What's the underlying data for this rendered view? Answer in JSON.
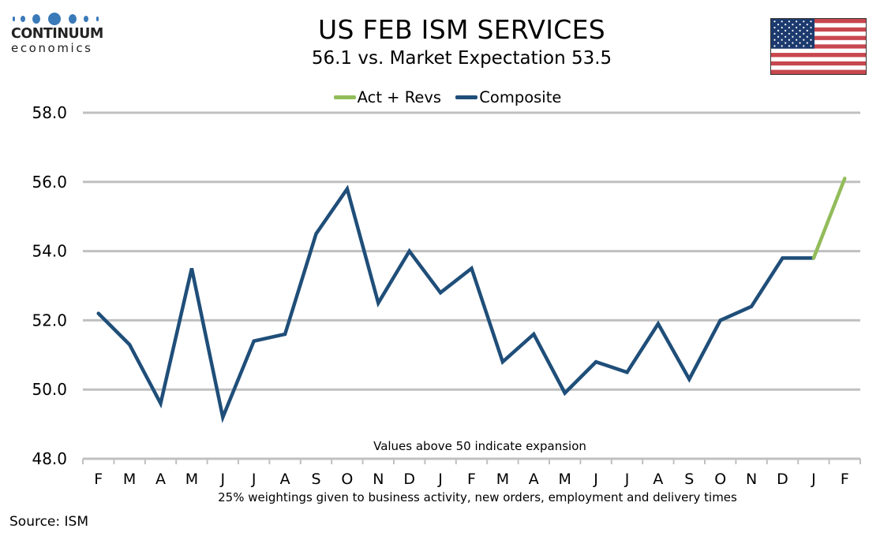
{
  "logo": {
    "name": "CONTINUUM",
    "sub": "economics"
  },
  "flag": {
    "name": "us-flag"
  },
  "colors": {
    "composite": "#1f4e79",
    "act_revs": "#92bc5a",
    "grid": "#c0c0c0",
    "logo_dots": "#3a7ab8"
  },
  "source": "Source: ISM",
  "chart_data": {
    "type": "line",
    "title": "US FEB ISM SERVICES",
    "subtitle": "56.1 vs. Market Expectation 53.5",
    "xlabel": "25% weightings given to business activity, new orders, employment and delivery times",
    "ylabel": "",
    "annotation": "Values above 50 indicate expansion",
    "legend_position": "top-center",
    "grid": true,
    "ylim": [
      48.0,
      58.0
    ],
    "yticks": [
      "48.0",
      "50.0",
      "52.0",
      "54.0",
      "56.0",
      "58.0"
    ],
    "categories": [
      "F",
      "M",
      "A",
      "M",
      "J",
      "J",
      "A",
      "S",
      "O",
      "N",
      "D",
      "J",
      "F",
      "M",
      "A",
      "M",
      "J",
      "J",
      "A",
      "S",
      "O",
      "N",
      "D",
      "J",
      "F"
    ],
    "series": [
      {
        "name": "Act + Revs",
        "color": "#92bc5a",
        "values": [
          null,
          null,
          null,
          null,
          null,
          null,
          null,
          null,
          null,
          null,
          null,
          null,
          null,
          null,
          null,
          null,
          null,
          null,
          null,
          null,
          null,
          null,
          null,
          53.8,
          56.1
        ]
      },
      {
        "name": "Composite",
        "color": "#1f4e79",
        "values": [
          52.2,
          51.3,
          49.6,
          53.5,
          49.2,
          51.4,
          51.6,
          54.5,
          55.8,
          52.5,
          54.0,
          52.8,
          53.5,
          50.8,
          51.6,
          49.9,
          50.8,
          50.5,
          51.9,
          50.3,
          52.0,
          52.4,
          53.8,
          53.8,
          null
        ]
      }
    ]
  }
}
